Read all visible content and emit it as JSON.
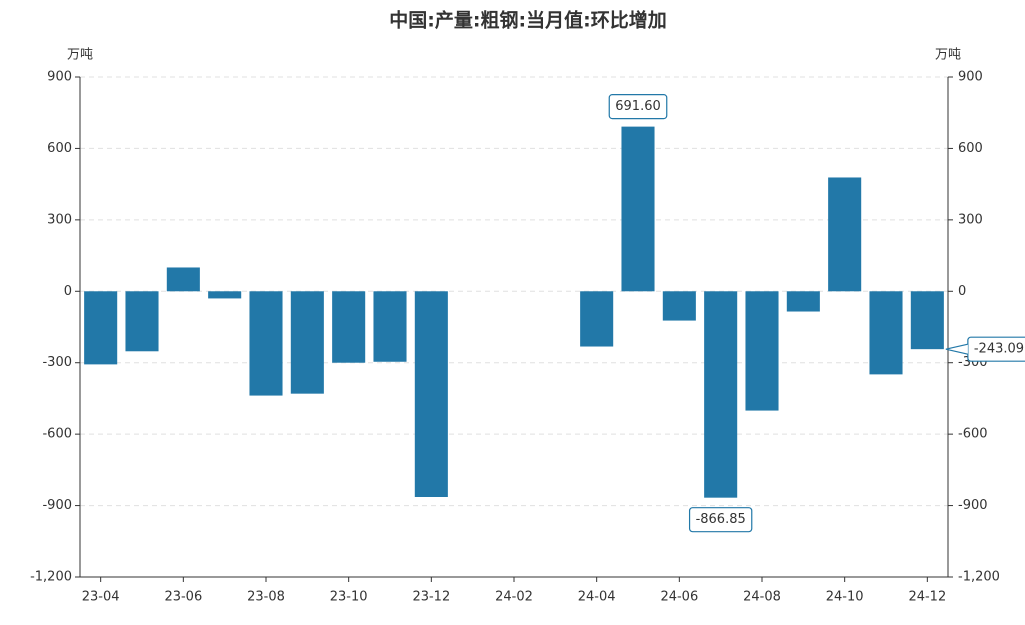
{
  "chart_data": {
    "type": "bar",
    "title": "中国:产量:粗钢:当月值:环比增加",
    "categories": [
      "23-04",
      null,
      "23-06",
      null,
      "23-08",
      null,
      "23-10",
      null,
      "23-12",
      null,
      "24-02",
      null,
      "24-04",
      null,
      "24-06",
      null,
      "24-08",
      null,
      "24-10",
      null,
      "24-12"
    ],
    "values": [
      -307,
      -252,
      100,
      -30,
      -438,
      -430,
      -300,
      -296,
      -864,
      null,
      null,
      null,
      -232,
      691.6,
      -123,
      -866.85,
      -501,
      -85,
      478,
      -349,
      -243.09
    ],
    "value_labels": [
      null,
      null,
      null,
      null,
      null,
      null,
      null,
      null,
      null,
      null,
      null,
      null,
      null,
      "691.60",
      null,
      "-866.85",
      null,
      null,
      null,
      null,
      "-243.09"
    ],
    "color": "#2278a8",
    "y_axis_label": "万吨",
    "y2_axis_label": "万吨",
    "ylim": [
      -1200,
      900
    ],
    "yticks": [
      {
        "value": -1200,
        "label": "-1,200"
      },
      -900,
      -600,
      -300,
      0,
      300,
      600,
      900
    ],
    "y2lim": [
      -1200,
      900
    ],
    "y2ticks": [
      {
        "value": -1200,
        "label": "-1,200"
      },
      -900,
      -600,
      -300,
      0,
      300,
      600,
      900
    ],
    "grid": true
  }
}
